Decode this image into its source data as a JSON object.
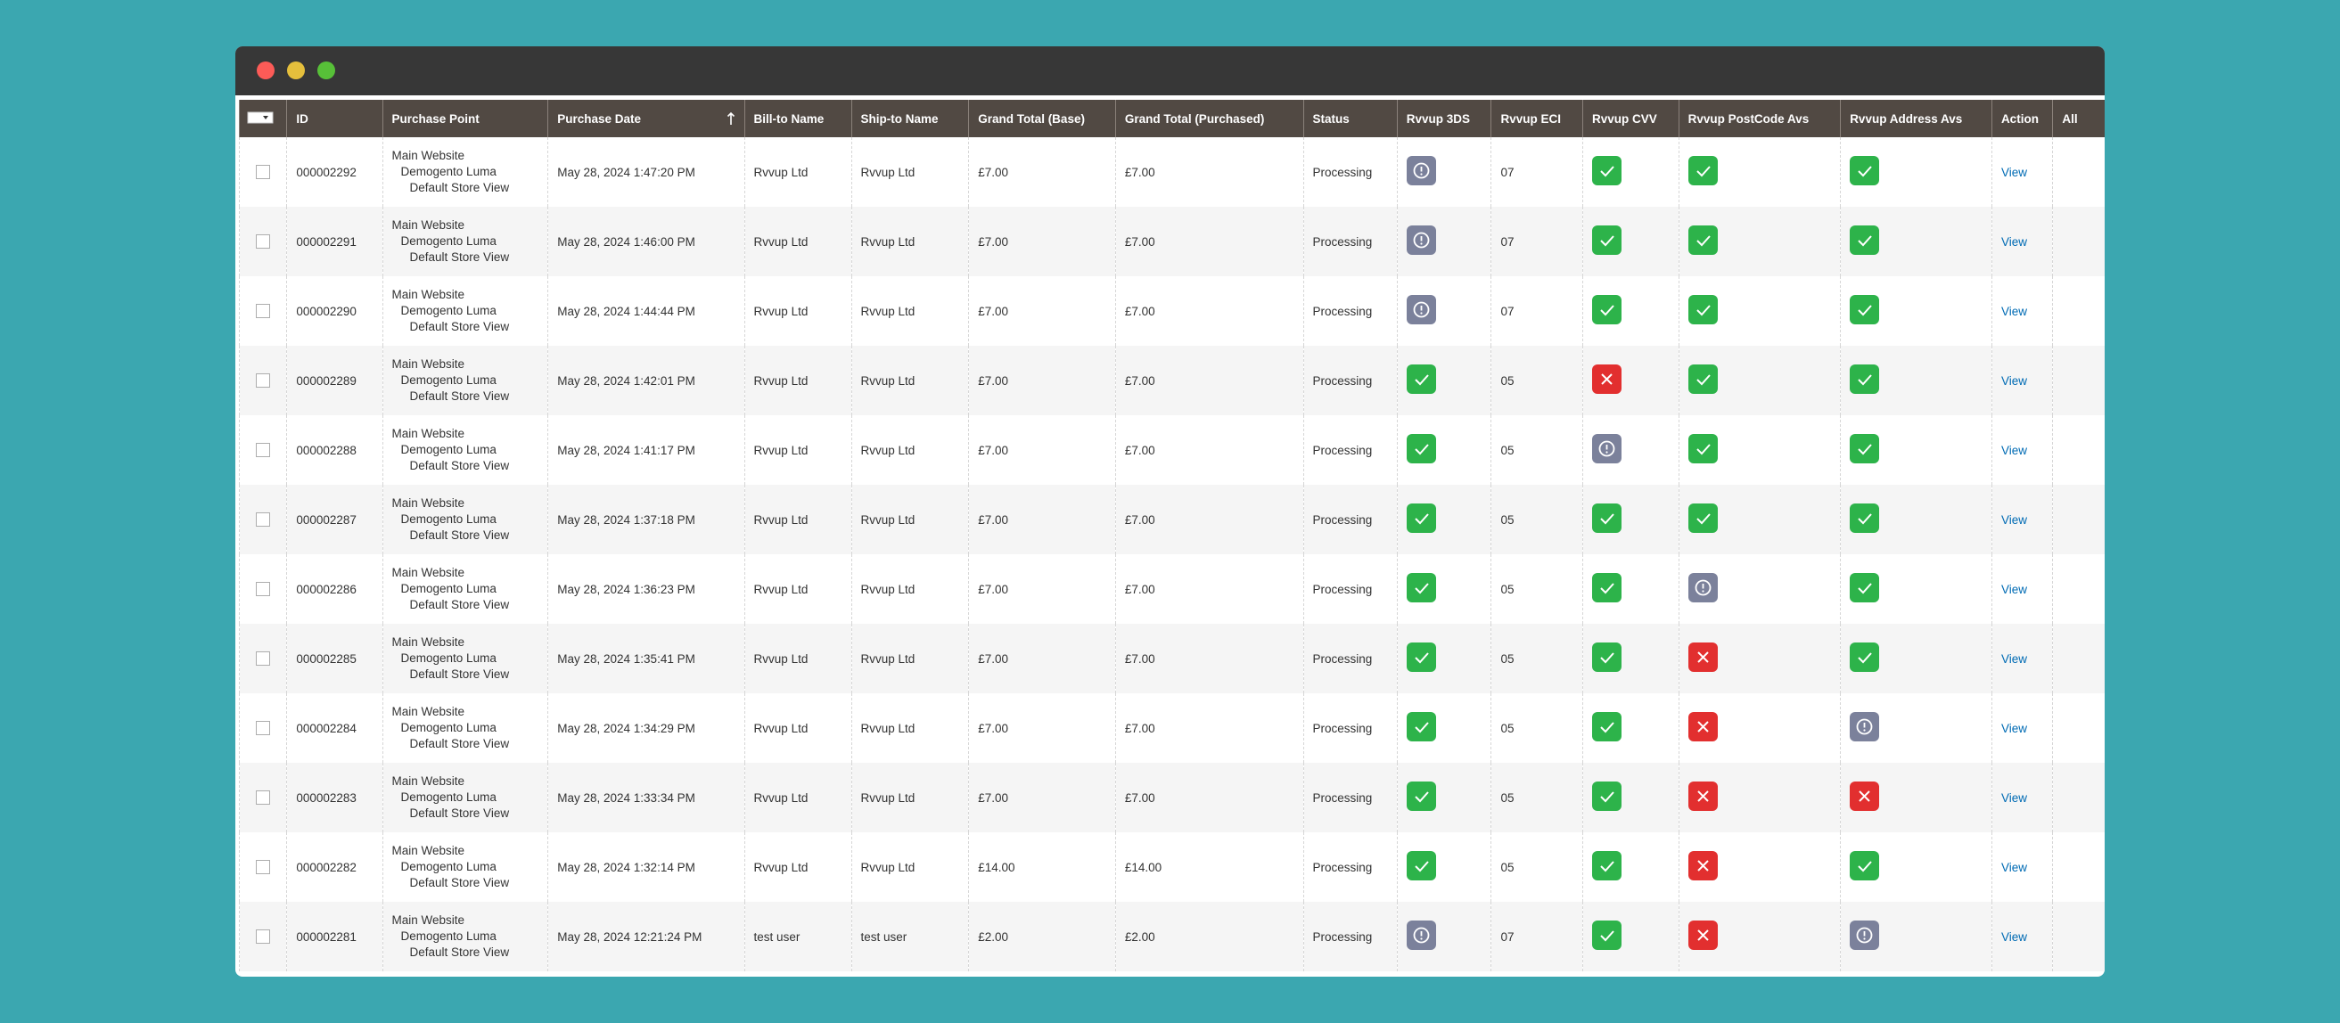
{
  "table": {
    "columns": [
      "ID",
      "Purchase Point",
      "Purchase Date",
      "Bill-to Name",
      "Ship-to Name",
      "Grand Total (Base)",
      "Grand Total (Purchased)",
      "Status",
      "Rvvup 3DS",
      "Rvvup ECI",
      "Rvvup CVV",
      "Rvvup PostCode Avs",
      "Rvvup Address Avs",
      "Action",
      "All"
    ],
    "rows": [
      {
        "id": "000002292",
        "purchase_point": [
          "Main Website",
          "Demogento Luma",
          "Default Store View"
        ],
        "date": "May 28, 2024 1:47:20 PM",
        "bill_to": "Rvvup Ltd",
        "ship_to": "Rvvup Ltd",
        "base": "£7.00",
        "purchased": "£7.00",
        "status": "Processing",
        "rvvup_3ds": "info",
        "eci": "07",
        "cvv": "pass",
        "postcode_avs": "pass",
        "address_avs": "pass",
        "action": "View"
      },
      {
        "id": "000002291",
        "purchase_point": [
          "Main Website",
          "Demogento Luma",
          "Default Store View"
        ],
        "date": "May 28, 2024 1:46:00 PM",
        "bill_to": "Rvvup Ltd",
        "ship_to": "Rvvup Ltd",
        "base": "£7.00",
        "purchased": "£7.00",
        "status": "Processing",
        "rvvup_3ds": "info",
        "eci": "07",
        "cvv": "pass",
        "postcode_avs": "pass",
        "address_avs": "pass",
        "action": "View"
      },
      {
        "id": "000002290",
        "purchase_point": [
          "Main Website",
          "Demogento Luma",
          "Default Store View"
        ],
        "date": "May 28, 2024 1:44:44 PM",
        "bill_to": "Rvvup Ltd",
        "ship_to": "Rvvup Ltd",
        "base": "£7.00",
        "purchased": "£7.00",
        "status": "Processing",
        "rvvup_3ds": "info",
        "eci": "07",
        "cvv": "pass",
        "postcode_avs": "pass",
        "address_avs": "pass",
        "action": "View"
      },
      {
        "id": "000002289",
        "purchase_point": [
          "Main Website",
          "Demogento Luma",
          "Default Store View"
        ],
        "date": "May 28, 2024 1:42:01 PM",
        "bill_to": "Rvvup Ltd",
        "ship_to": "Rvvup Ltd",
        "base": "£7.00",
        "purchased": "£7.00",
        "status": "Processing",
        "rvvup_3ds": "pass",
        "eci": "05",
        "cvv": "fail",
        "postcode_avs": "pass",
        "address_avs": "pass",
        "action": "View"
      },
      {
        "id": "000002288",
        "purchase_point": [
          "Main Website",
          "Demogento Luma",
          "Default Store View"
        ],
        "date": "May 28, 2024 1:41:17 PM",
        "bill_to": "Rvvup Ltd",
        "ship_to": "Rvvup Ltd",
        "base": "£7.00",
        "purchased": "£7.00",
        "status": "Processing",
        "rvvup_3ds": "pass",
        "eci": "05",
        "cvv": "info",
        "postcode_avs": "pass",
        "address_avs": "pass",
        "action": "View"
      },
      {
        "id": "000002287",
        "purchase_point": [
          "Main Website",
          "Demogento Luma",
          "Default Store View"
        ],
        "date": "May 28, 2024 1:37:18 PM",
        "bill_to": "Rvvup Ltd",
        "ship_to": "Rvvup Ltd",
        "base": "£7.00",
        "purchased": "£7.00",
        "status": "Processing",
        "rvvup_3ds": "pass",
        "eci": "05",
        "cvv": "pass",
        "postcode_avs": "pass",
        "address_avs": "pass",
        "action": "View"
      },
      {
        "id": "000002286",
        "purchase_point": [
          "Main Website",
          "Demogento Luma",
          "Default Store View"
        ],
        "date": "May 28, 2024 1:36:23 PM",
        "bill_to": "Rvvup Ltd",
        "ship_to": "Rvvup Ltd",
        "base": "£7.00",
        "purchased": "£7.00",
        "status": "Processing",
        "rvvup_3ds": "pass",
        "eci": "05",
        "cvv": "pass",
        "postcode_avs": "info",
        "address_avs": "pass",
        "action": "View"
      },
      {
        "id": "000002285",
        "purchase_point": [
          "Main Website",
          "Demogento Luma",
          "Default Store View"
        ],
        "date": "May 28, 2024 1:35:41 PM",
        "bill_to": "Rvvup Ltd",
        "ship_to": "Rvvup Ltd",
        "base": "£7.00",
        "purchased": "£7.00",
        "status": "Processing",
        "rvvup_3ds": "pass",
        "eci": "05",
        "cvv": "pass",
        "postcode_avs": "fail",
        "address_avs": "pass",
        "action": "View"
      },
      {
        "id": "000002284",
        "purchase_point": [
          "Main Website",
          "Demogento Luma",
          "Default Store View"
        ],
        "date": "May 28, 2024 1:34:29 PM",
        "bill_to": "Rvvup Ltd",
        "ship_to": "Rvvup Ltd",
        "base": "£7.00",
        "purchased": "£7.00",
        "status": "Processing",
        "rvvup_3ds": "pass",
        "eci": "05",
        "cvv": "pass",
        "postcode_avs": "fail",
        "address_avs": "info",
        "action": "View"
      },
      {
        "id": "000002283",
        "purchase_point": [
          "Main Website",
          "Demogento Luma",
          "Default Store View"
        ],
        "date": "May 28, 2024 1:33:34 PM",
        "bill_to": "Rvvup Ltd",
        "ship_to": "Rvvup Ltd",
        "base": "£7.00",
        "purchased": "£7.00",
        "status": "Processing",
        "rvvup_3ds": "pass",
        "eci": "05",
        "cvv": "pass",
        "postcode_avs": "fail",
        "address_avs": "fail",
        "action": "View"
      },
      {
        "id": "000002282",
        "purchase_point": [
          "Main Website",
          "Demogento Luma",
          "Default Store View"
        ],
        "date": "May 28, 2024 1:32:14 PM",
        "bill_to": "Rvvup Ltd",
        "ship_to": "Rvvup Ltd",
        "base": "£14.00",
        "purchased": "£14.00",
        "status": "Processing",
        "rvvup_3ds": "pass",
        "eci": "05",
        "cvv": "pass",
        "postcode_avs": "fail",
        "address_avs": "pass",
        "action": "View"
      },
      {
        "id": "000002281",
        "purchase_point": [
          "Main Website",
          "Demogento Luma",
          "Default Store View"
        ],
        "date": "May 28, 2024 12:21:24 PM",
        "bill_to": "test user",
        "ship_to": "test user",
        "base": "£2.00",
        "purchased": "£2.00",
        "status": "Processing",
        "rvvup_3ds": "info",
        "eci": "07",
        "cvv": "pass",
        "postcode_avs": "fail",
        "address_avs": "info",
        "action": "View"
      }
    ]
  }
}
